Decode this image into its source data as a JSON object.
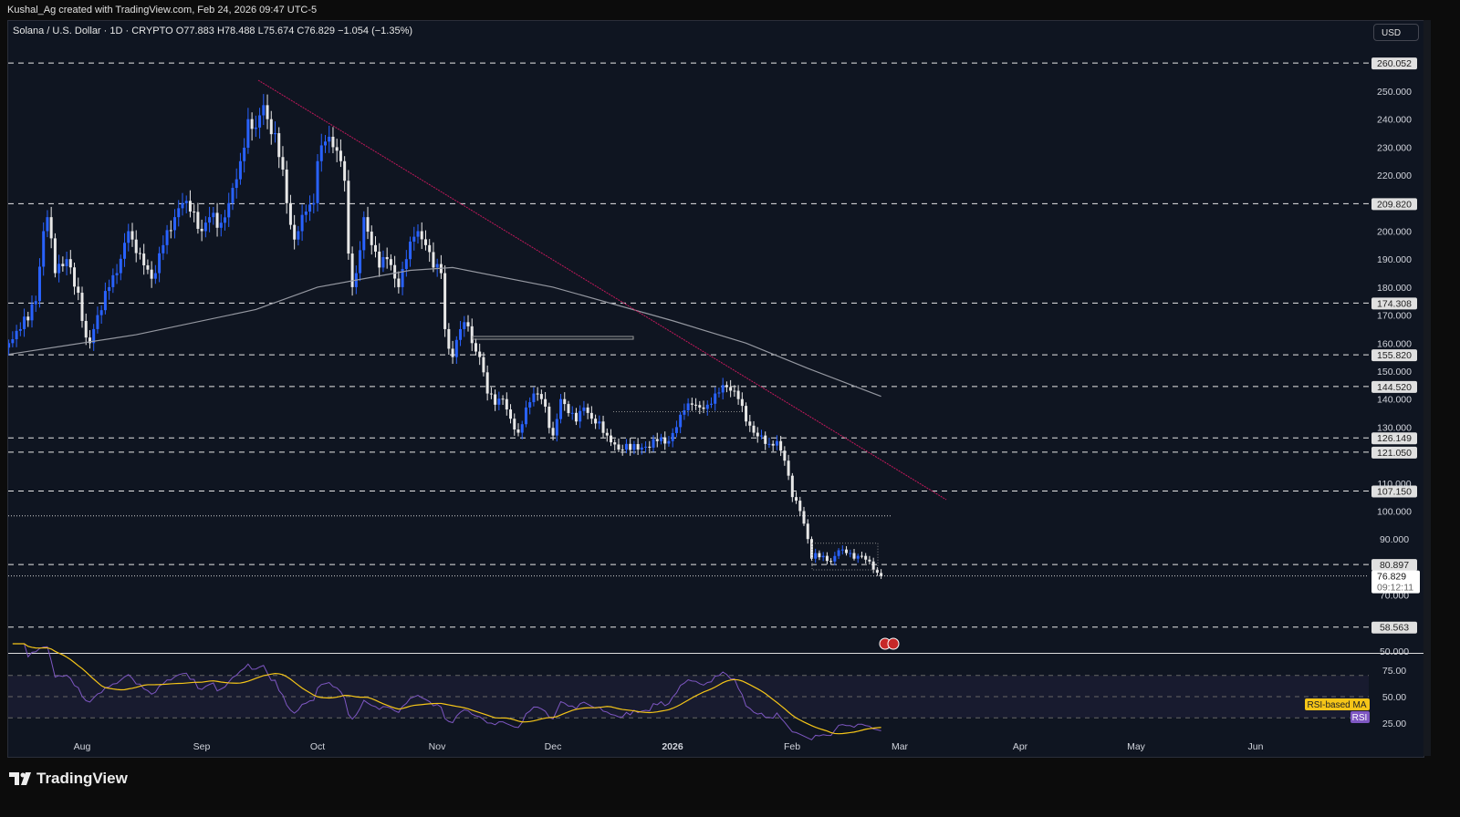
{
  "credit": "Kushal_Ag created with TradingView.com, Feb 24, 2026 09:47 UTC-5",
  "legend": "Solana / U.S. Dollar · 1D · CRYPTO  O77.883  H78.488  L75.674  C76.829  −1.054 (−1.35%)",
  "currency": "USD",
  "brand": "TradingView",
  "colors": {
    "up": "#2962ff",
    "down": "#e8e8e8",
    "trendline": "#c2185b",
    "ma": "#9598a1",
    "rsi": "#7e57c2",
    "rsi_ma": "#f5c518",
    "background": "#0f1521"
  },
  "chart_data": {
    "type": "candlestick",
    "symbol": "SOLUSD",
    "interval": "1D",
    "ylim": [
      50,
      262
    ],
    "price_ticks": [
      "250.000",
      "240.000",
      "230.000",
      "220.000",
      "200.000",
      "190.000",
      "180.000",
      "170.000",
      "160.000",
      "150.000",
      "140.000",
      "130.000",
      "110.000",
      "100.000",
      "90.000",
      "70.000",
      "50.000"
    ],
    "horizontal_levels": [
      "260.052",
      "209.820",
      "174.308",
      "155.820",
      "144.520",
      "126.149",
      "121.050",
      "107.150",
      "80.897",
      "58.563"
    ],
    "last_price": "76.829",
    "countdown": "09:12:11",
    "x_ticks": [
      "Aug",
      "Sep",
      "Oct",
      "Nov",
      "Dec",
      "2026",
      "Feb",
      "Mar",
      "Apr",
      "May",
      "Jun"
    ],
    "close_keypoints": [
      [
        "2025-07-13",
        160
      ],
      [
        "2025-07-16",
        165
      ],
      [
        "2025-07-20",
        175
      ],
      [
        "2025-07-22",
        200
      ],
      [
        "2025-07-23",
        205
      ],
      [
        "2025-07-25",
        185
      ],
      [
        "2025-07-28",
        190
      ],
      [
        "2025-07-31",
        178
      ],
      [
        "2025-08-02",
        162
      ],
      [
        "2025-08-03",
        160
      ],
      [
        "2025-08-05",
        170
      ],
      [
        "2025-08-08",
        180
      ],
      [
        "2025-08-10",
        185
      ],
      [
        "2025-08-13",
        200
      ],
      [
        "2025-08-14",
        197
      ],
      [
        "2025-08-16",
        192
      ],
      [
        "2025-08-19",
        183
      ],
      [
        "2025-08-20",
        185
      ],
      [
        "2025-08-22",
        195
      ],
      [
        "2025-08-25",
        205
      ],
      [
        "2025-08-27",
        210
      ],
      [
        "2025-08-29",
        207
      ],
      [
        "2025-09-01",
        200
      ],
      [
        "2025-09-03",
        205
      ],
      [
        "2025-09-06",
        203
      ],
      [
        "2025-09-08",
        210
      ],
      [
        "2025-09-11",
        225
      ],
      [
        "2025-09-13",
        240
      ],
      [
        "2025-09-15",
        237
      ],
      [
        "2025-09-17",
        245
      ],
      [
        "2025-09-18",
        240
      ],
      [
        "2025-09-20",
        235
      ],
      [
        "2025-09-22",
        222
      ],
      [
        "2025-09-23",
        210
      ],
      [
        "2025-09-25",
        197
      ],
      [
        "2025-09-26",
        200
      ],
      [
        "2025-09-28",
        207
      ],
      [
        "2025-09-30",
        210
      ],
      [
        "2025-10-01",
        225
      ],
      [
        "2025-10-03",
        232
      ],
      [
        "2025-10-05",
        230
      ],
      [
        "2025-10-07",
        225
      ],
      [
        "2025-10-08",
        218
      ],
      [
        "2025-10-09",
        192
      ],
      [
        "2025-10-10",
        180
      ],
      [
        "2025-10-11",
        185
      ],
      [
        "2025-10-13",
        205
      ],
      [
        "2025-10-15",
        195
      ],
      [
        "2025-10-17",
        187
      ],
      [
        "2025-10-19",
        190
      ],
      [
        "2025-10-22",
        180
      ],
      [
        "2025-10-24",
        190
      ],
      [
        "2025-10-26",
        198
      ],
      [
        "2025-10-27",
        200
      ],
      [
        "2025-10-29",
        195
      ],
      [
        "2025-10-31",
        187
      ],
      [
        "2025-11-02",
        185
      ],
      [
        "2025-11-03",
        165
      ],
      [
        "2025-11-04",
        158
      ],
      [
        "2025-11-05",
        155
      ],
      [
        "2025-11-07",
        165
      ],
      [
        "2025-11-09",
        166
      ],
      [
        "2025-11-10",
        160
      ],
      [
        "2025-11-12",
        155
      ],
      [
        "2025-11-14",
        142
      ],
      [
        "2025-11-16",
        138
      ],
      [
        "2025-11-18",
        140
      ],
      [
        "2025-11-20",
        133
      ],
      [
        "2025-11-22",
        128
      ],
      [
        "2025-11-24",
        137
      ],
      [
        "2025-11-26",
        142
      ],
      [
        "2025-11-28",
        140
      ],
      [
        "2025-12-01",
        127
      ],
      [
        "2025-12-03",
        140
      ],
      [
        "2025-12-05",
        135
      ],
      [
        "2025-12-07",
        132
      ],
      [
        "2025-12-09",
        137
      ],
      [
        "2025-12-11",
        133
      ],
      [
        "2025-12-13",
        132
      ],
      [
        "2025-12-15",
        127
      ],
      [
        "2025-12-18",
        122
      ],
      [
        "2025-12-20",
        124
      ],
      [
        "2025-12-23",
        122
      ],
      [
        "2025-12-25",
        123
      ],
      [
        "2025-12-28",
        125
      ],
      [
        "2025-12-31",
        125
      ],
      [
        "2026-01-02",
        130
      ],
      [
        "2026-01-04",
        136
      ],
      [
        "2026-01-06",
        138
      ],
      [
        "2026-01-08",
        137
      ],
      [
        "2026-01-10",
        138
      ],
      [
        "2026-01-12",
        142
      ],
      [
        "2026-01-14",
        145
      ],
      [
        "2026-01-16",
        143
      ],
      [
        "2026-01-18",
        140
      ],
      [
        "2026-01-20",
        132
      ],
      [
        "2026-01-22",
        128
      ],
      [
        "2026-01-24",
        127
      ],
      [
        "2026-01-26",
        124
      ],
      [
        "2026-01-28",
        125
      ],
      [
        "2026-01-30",
        118
      ],
      [
        "2026-02-01",
        105
      ],
      [
        "2026-02-03",
        100
      ],
      [
        "2026-02-05",
        90
      ],
      [
        "2026-02-06",
        83
      ],
      [
        "2026-02-07",
        85
      ],
      [
        "2026-02-09",
        84
      ],
      [
        "2026-02-11",
        82
      ],
      [
        "2026-02-13",
        86
      ],
      [
        "2026-02-15",
        85
      ],
      [
        "2026-02-17",
        83
      ],
      [
        "2026-02-19",
        84
      ],
      [
        "2026-02-21",
        82
      ],
      [
        "2026-02-23",
        78
      ],
      [
        "2026-02-24",
        76.829
      ]
    ],
    "rsi": {
      "ticks": [
        "75.00",
        "50.00",
        "25.00"
      ],
      "bands": [
        70,
        50,
        30
      ],
      "labels": {
        "ma": "RSI-based MA",
        "rsi": "RSI"
      }
    }
  }
}
